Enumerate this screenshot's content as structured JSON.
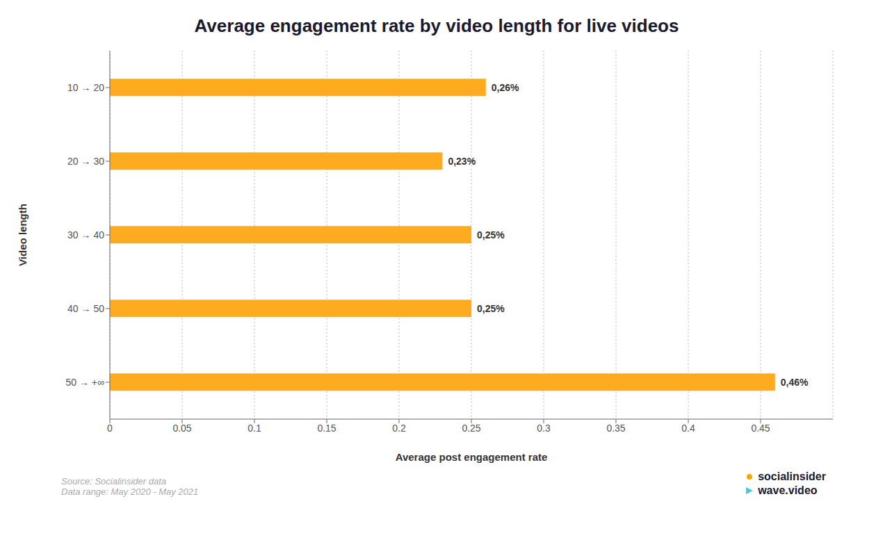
{
  "chart_data": {
    "type": "bar",
    "orientation": "horizontal",
    "title": "Average engagement rate by video length for live videos",
    "x_label": "Average post engagement rate",
    "y_label": "Video length",
    "categories": [
      "10 → 20",
      "20 → 30",
      "30 → 40",
      "40 → 50",
      "50 → +∞"
    ],
    "values": [
      0.26,
      0.23,
      0.25,
      0.25,
      0.46
    ],
    "value_labels": [
      "0,26%",
      "0,23%",
      "0,25%",
      "0,25%",
      "0,46%"
    ],
    "data_labels": true,
    "color": "#FFAB20",
    "xlim": [
      0,
      0.5
    ],
    "xticks": [
      0,
      0.05,
      0.1,
      0.15,
      0.2,
      0.25,
      0.3,
      0.35,
      0.4,
      0.45
    ],
    "grid": true,
    "annotations": [
      "Source: Socialinsider data\nData range: May 2020 - May 2021",
      "socialinsider",
      "wave.video"
    ]
  }
}
